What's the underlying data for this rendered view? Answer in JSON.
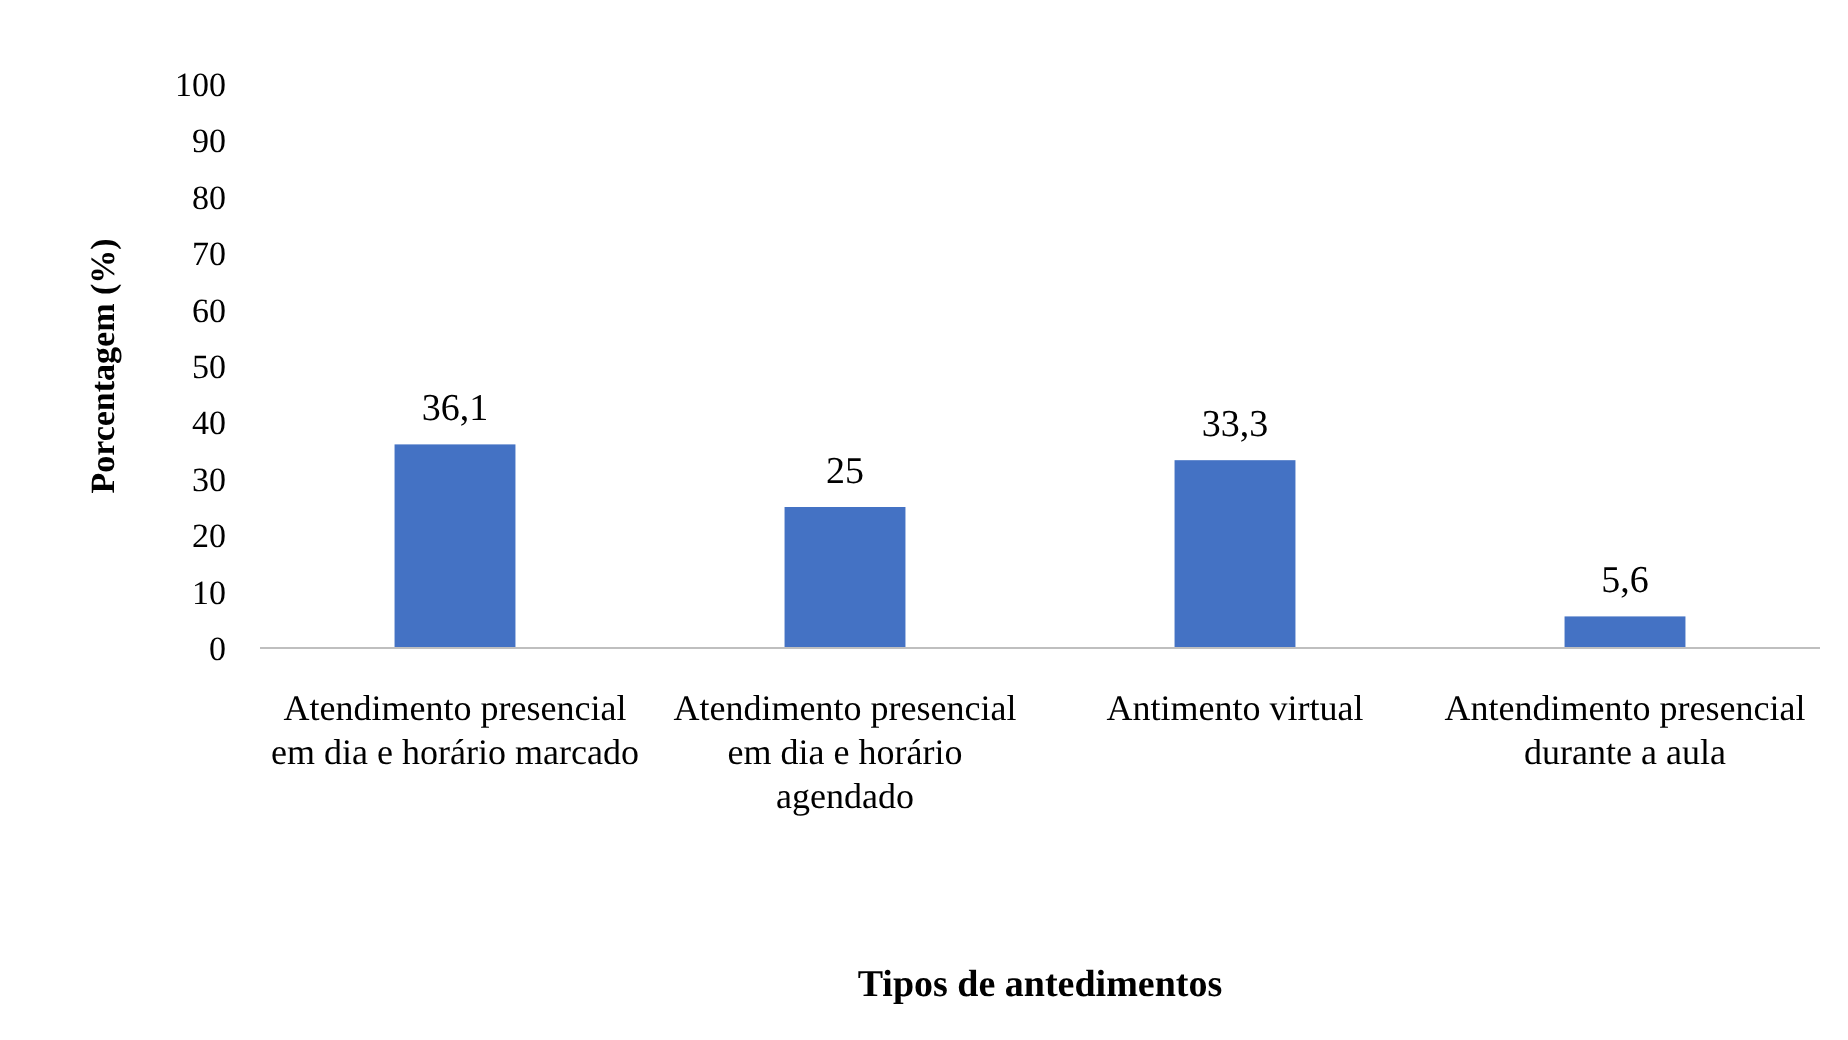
{
  "chart_data": {
    "type": "bar",
    "xlabel": "Tipos de antedimentos",
    "ylabel": "Porcentagem (%)",
    "categories": [
      "Atendimento presencial em dia e horário marcado",
      "Atendimento presencial em dia e horário agendado",
      "Antimento virtual",
      "Antendimento presencial durante a aula"
    ],
    "values": [
      36.1,
      25,
      33.3,
      5.6
    ],
    "color": "#4472c4",
    "data_labels": true,
    "value_labels": [
      "36,1",
      "25",
      "33,3",
      "5,6"
    ],
    "ylim": [
      0,
      100
    ],
    "yticks": [
      0,
      10,
      20,
      30,
      40,
      50,
      60,
      70,
      80,
      90,
      100
    ],
    "grid": false
  }
}
